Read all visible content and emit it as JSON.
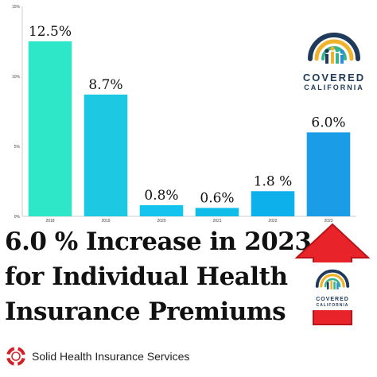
{
  "chart_data": {
    "type": "bar",
    "categories": [
      "2018",
      "2019",
      "2020",
      "2021",
      "2022",
      "2023"
    ],
    "values": [
      12.5,
      8.7,
      0.8,
      0.6,
      1.8,
      6.0
    ],
    "data_labels": [
      "12.5%",
      "8.7%",
      "0.8%",
      "0.6%",
      "1.8 %",
      "6.0%"
    ],
    "ylim": [
      0,
      15
    ],
    "yticks": [
      "0%",
      "5%",
      "10%",
      "15%"
    ],
    "ytick_values": [
      0,
      5,
      10,
      15
    ],
    "colors": [
      "#2ee6c8",
      "#1dc8e3",
      "#14c4ee",
      "#10bde9",
      "#0eb0ec",
      "#1a9ce6"
    ],
    "grid": false,
    "legend": "none"
  },
  "headline": {
    "line1": "6.0 %  Increase in 2023",
    "line2": "for Individual Health",
    "line3": "Insurance Premiums"
  },
  "logo": {
    "word1": "COVERED",
    "word2": "CALIFORNIA"
  },
  "footer": {
    "company": "Solid Health Insurance Services"
  },
  "colors": {
    "arrow": "#e8232a",
    "logo_text": "#1f3a5a"
  }
}
